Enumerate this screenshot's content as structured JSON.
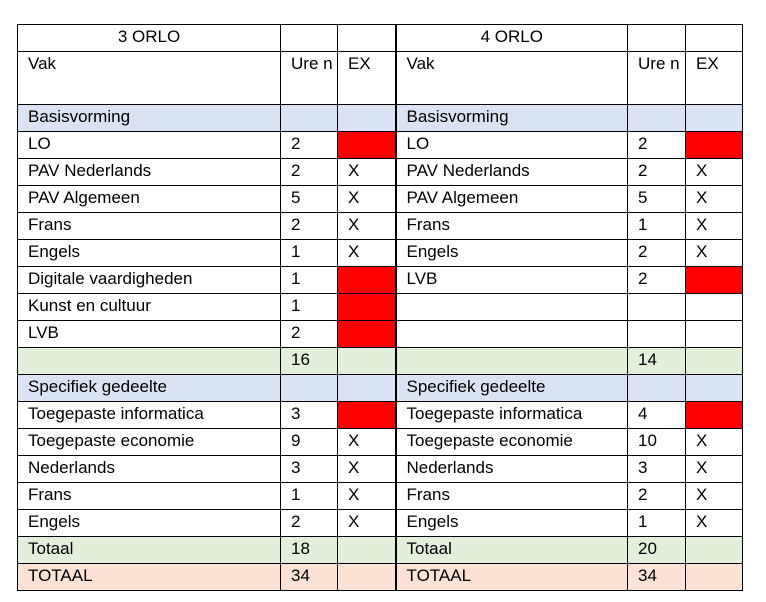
{
  "left": {
    "title": "3 ORLO",
    "head": {
      "vak": "Vak",
      "uren": "Ure n",
      "ex": "EX"
    },
    "basis_label": "Basisvorming",
    "basis": [
      {
        "vak": "LO",
        "uren": "2",
        "ex": "",
        "red": true
      },
      {
        "vak": "PAV Nederlands",
        "uren": "2",
        "ex": "X",
        "red": false
      },
      {
        "vak": "PAV Algemeen",
        "uren": "5",
        "ex": "X",
        "red": false
      },
      {
        "vak": "Frans",
        "uren": "2",
        "ex": "X",
        "red": false
      },
      {
        "vak": "Engels",
        "uren": "1",
        "ex": "X",
        "red": false
      },
      {
        "vak": "Digitale vaardigheden",
        "uren": "1",
        "ex": "",
        "red": true
      },
      {
        "vak": "Kunst en cultuur",
        "uren": "1",
        "ex": "",
        "red": true
      },
      {
        "vak": "LVB",
        "uren": "2",
        "ex": "",
        "red": true
      }
    ],
    "basis_total": "16",
    "spec_label": "Specifiek gedeelte",
    "spec": [
      {
        "vak": "Toegepaste informatica",
        "uren": "3",
        "ex": "",
        "red": true
      },
      {
        "vak": "Toegepaste economie",
        "uren": "9",
        "ex": "X",
        "red": false
      },
      {
        "vak": "Nederlands",
        "uren": "3",
        "ex": "X",
        "red": false
      },
      {
        "vak": "Frans",
        "uren": "1",
        "ex": "X",
        "red": false
      },
      {
        "vak": "Engels",
        "uren": "2",
        "ex": "X",
        "red": false
      }
    ],
    "totaal_label": "Totaal",
    "totaal": "18",
    "grand_label": "TOTAAL",
    "grand": "34"
  },
  "right": {
    "title": "4 ORLO",
    "head": {
      "vak": "Vak",
      "uren": "Ure n",
      "ex": "EX"
    },
    "basis_label": "Basisvorming",
    "basis": [
      {
        "vak": "LO",
        "uren": "2",
        "ex": "",
        "red": true
      },
      {
        "vak": "PAV Nederlands",
        "uren": "2",
        "ex": "X",
        "red": false
      },
      {
        "vak": "PAV Algemeen",
        "uren": "5",
        "ex": "X",
        "red": false
      },
      {
        "vak": "Frans",
        "uren": "1",
        "ex": "X",
        "red": false
      },
      {
        "vak": "Engels",
        "uren": "2",
        "ex": "X",
        "red": false
      },
      {
        "vak": "LVB",
        "uren": "2",
        "ex": "",
        "red": true
      },
      {
        "vak": "",
        "uren": "",
        "ex": "",
        "red": false
      },
      {
        "vak": "",
        "uren": "",
        "ex": "",
        "red": false
      }
    ],
    "basis_total": "14",
    "spec_label": "Specifiek gedeelte",
    "spec": [
      {
        "vak": "Toegepaste informatica",
        "uren": "4",
        "ex": "",
        "red": true
      },
      {
        "vak": "Toegepaste economie",
        "uren": "10",
        "ex": "X",
        "red": false
      },
      {
        "vak": "Nederlands",
        "uren": "3",
        "ex": "X",
        "red": false
      },
      {
        "vak": "Frans",
        "uren": "2",
        "ex": "X",
        "red": false
      },
      {
        "vak": "Engels",
        "uren": "1",
        "ex": "X",
        "red": false
      }
    ],
    "totaal_label": "Totaal",
    "totaal": "20",
    "grand_label": "TOTAAL",
    "grand": "34"
  }
}
